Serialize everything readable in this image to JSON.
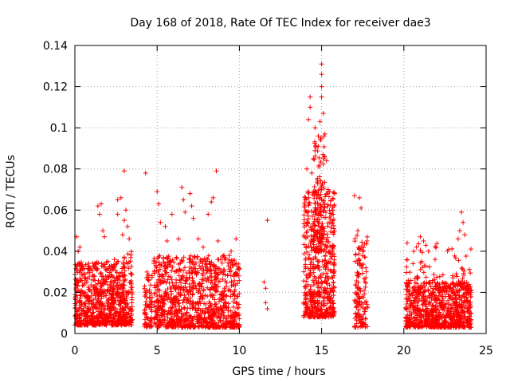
{
  "chart_data": {
    "type": "scatter",
    "title": "Day 168 of 2018, Rate Of TEC Index for receiver dae3",
    "xlabel": "GPS time / hours",
    "ylabel": "ROTI / TECUs",
    "xlim": [
      0,
      25
    ],
    "ylim": [
      0,
      0.14
    ],
    "grid": true,
    "marker": "+",
    "color": "#ff0000",
    "x_ticks": [
      0,
      5,
      10,
      15,
      20,
      25
    ],
    "x_tick_labels": [
      "0",
      "5",
      "10",
      "15",
      "20",
      "25"
    ],
    "y_ticks": [
      0,
      0.02,
      0.04,
      0.06,
      0.08,
      0.1,
      0.12,
      0.14
    ],
    "y_tick_labels": [
      "0",
      "0.02",
      "0.04",
      "0.06",
      "0.08",
      "0.1",
      "0.12",
      "0.14"
    ],
    "series": [
      {
        "name": "ROTI",
        "clusters": [
          {
            "x_range": [
              0.0,
              3.0
            ],
            "y_range": [
              0.004,
              0.035
            ],
            "count": 700
          },
          {
            "x_range": [
              2.9,
              3.5
            ],
            "y_range": [
              0.004,
              0.04
            ],
            "count": 120
          },
          {
            "x_range": [
              4.2,
              4.7
            ],
            "y_range": [
              0.003,
              0.03
            ],
            "count": 70
          },
          {
            "x_range": [
              4.8,
              10.0
            ],
            "y_range": [
              0.003,
              0.038
            ],
            "count": 1000
          },
          {
            "x_range": [
              13.9,
              15.8
            ],
            "y_range": [
              0.008,
              0.07
            ],
            "count": 550
          },
          {
            "x_range": [
              14.5,
              15.2
            ],
            "y_range": [
              0.04,
              0.1
            ],
            "count": 120
          },
          {
            "x_range": [
              17.0,
              17.8
            ],
            "y_range": [
              0.003,
              0.048
            ],
            "count": 140
          },
          {
            "x_range": [
              20.1,
              24.1
            ],
            "y_range": [
              0.003,
              0.025
            ],
            "count": 800
          },
          {
            "x_range": [
              20.1,
              24.1
            ],
            "y_range": [
              0.02,
              0.045
            ],
            "count": 90
          }
        ],
        "points": [
          {
            "x": 0.1,
            "y": 0.047
          },
          {
            "x": 0.2,
            "y": 0.04
          },
          {
            "x": 0.3,
            "y": 0.042
          },
          {
            "x": 1.4,
            "y": 0.062
          },
          {
            "x": 1.5,
            "y": 0.058
          },
          {
            "x": 1.6,
            "y": 0.063
          },
          {
            "x": 1.7,
            "y": 0.05
          },
          {
            "x": 1.8,
            "y": 0.047
          },
          {
            "x": 2.0,
            "y": 0.035
          },
          {
            "x": 2.4,
            "y": 0.036
          },
          {
            "x": 2.6,
            "y": 0.065
          },
          {
            "x": 2.6,
            "y": 0.058
          },
          {
            "x": 2.8,
            "y": 0.066
          },
          {
            "x": 3.0,
            "y": 0.079
          },
          {
            "x": 3.1,
            "y": 0.06
          },
          {
            "x": 3.0,
            "y": 0.055
          },
          {
            "x": 3.2,
            "y": 0.052
          },
          {
            "x": 3.3,
            "y": 0.046
          },
          {
            "x": 2.9,
            "y": 0.048
          },
          {
            "x": 4.3,
            "y": 0.078
          },
          {
            "x": 5.0,
            "y": 0.069
          },
          {
            "x": 5.1,
            "y": 0.063
          },
          {
            "x": 5.2,
            "y": 0.054
          },
          {
            "x": 5.5,
            "y": 0.052
          },
          {
            "x": 5.6,
            "y": 0.045
          },
          {
            "x": 5.9,
            "y": 0.058
          },
          {
            "x": 6.3,
            "y": 0.046
          },
          {
            "x": 6.5,
            "y": 0.071
          },
          {
            "x": 6.6,
            "y": 0.065
          },
          {
            "x": 6.7,
            "y": 0.059
          },
          {
            "x": 7.0,
            "y": 0.068
          },
          {
            "x": 7.1,
            "y": 0.062
          },
          {
            "x": 7.2,
            "y": 0.056
          },
          {
            "x": 7.5,
            "y": 0.046
          },
          {
            "x": 7.8,
            "y": 0.042
          },
          {
            "x": 8.1,
            "y": 0.058
          },
          {
            "x": 8.3,
            "y": 0.064
          },
          {
            "x": 8.4,
            "y": 0.066
          },
          {
            "x": 8.6,
            "y": 0.079
          },
          {
            "x": 8.7,
            "y": 0.045
          },
          {
            "x": 9.5,
            "y": 0.04
          },
          {
            "x": 9.8,
            "y": 0.046
          },
          {
            "x": 11.5,
            "y": 0.025
          },
          {
            "x": 11.6,
            "y": 0.022
          },
          {
            "x": 11.7,
            "y": 0.055
          },
          {
            "x": 11.6,
            "y": 0.015
          },
          {
            "x": 11.7,
            "y": 0.012
          },
          {
            "x": 14.1,
            "y": 0.08
          },
          {
            "x": 14.2,
            "y": 0.104
          },
          {
            "x": 14.3,
            "y": 0.115
          },
          {
            "x": 14.3,
            "y": 0.11
          },
          {
            "x": 14.4,
            "y": 0.078
          },
          {
            "x": 14.5,
            "y": 0.085
          },
          {
            "x": 14.6,
            "y": 0.1
          },
          {
            "x": 14.8,
            "y": 0.096
          },
          {
            "x": 14.9,
            "y": 0.103
          },
          {
            "x": 15.0,
            "y": 0.131
          },
          {
            "x": 15.0,
            "y": 0.126
          },
          {
            "x": 15.0,
            "y": 0.12
          },
          {
            "x": 15.0,
            "y": 0.115
          },
          {
            "x": 15.1,
            "y": 0.107
          },
          {
            "x": 15.2,
            "y": 0.097
          },
          {
            "x": 15.3,
            "y": 0.084
          },
          {
            "x": 15.4,
            "y": 0.07
          },
          {
            "x": 14.0,
            "y": 0.065
          },
          {
            "x": 17.0,
            "y": 0.067
          },
          {
            "x": 17.3,
            "y": 0.066
          },
          {
            "x": 17.4,
            "y": 0.061
          },
          {
            "x": 17.2,
            "y": 0.05
          },
          {
            "x": 20.2,
            "y": 0.044
          },
          {
            "x": 20.6,
            "y": 0.04
          },
          {
            "x": 21.0,
            "y": 0.047
          },
          {
            "x": 21.2,
            "y": 0.045
          },
          {
            "x": 21.5,
            "y": 0.04
          },
          {
            "x": 23.5,
            "y": 0.059
          },
          {
            "x": 23.6,
            "y": 0.054
          },
          {
            "x": 23.7,
            "y": 0.048
          },
          {
            "x": 23.4,
            "y": 0.05
          },
          {
            "x": 23.3,
            "y": 0.046
          }
        ]
      }
    ]
  }
}
